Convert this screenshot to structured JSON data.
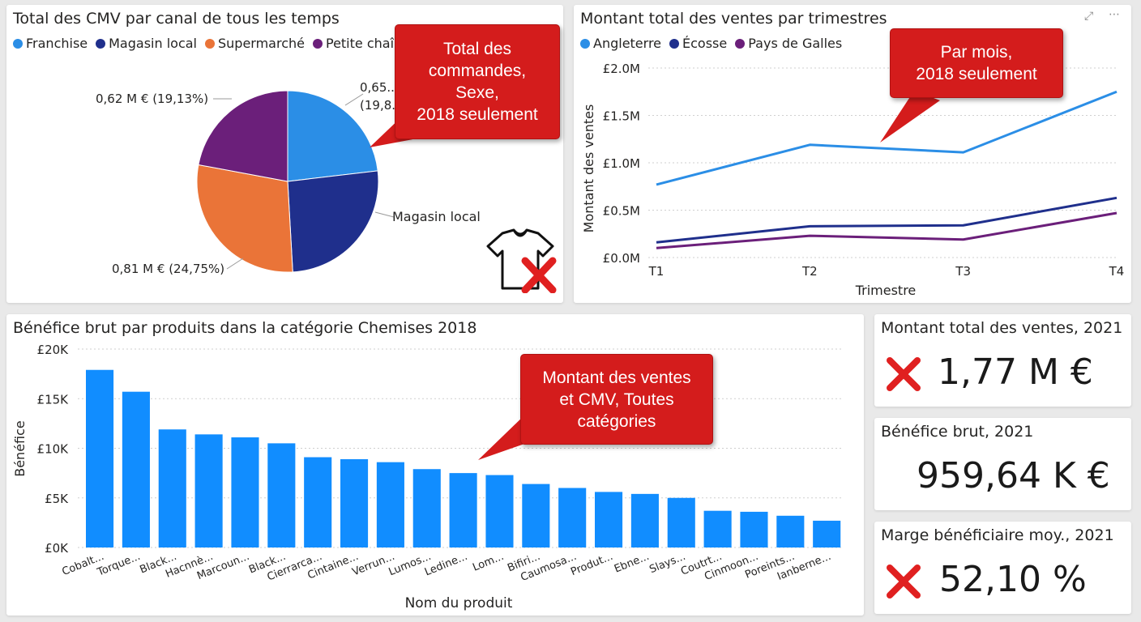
{
  "pie_card": {
    "title": "Total des CMV par canal de tous les temps",
    "legend": [
      {
        "name": "Franchise",
        "color": "#2b8ee6"
      },
      {
        "name": "Magasin local",
        "color": "#1f2f8c"
      },
      {
        "name": "Supermarché",
        "color": "#ea7438"
      },
      {
        "name": "Petite chaîne ...",
        "color": "#6b1f7a"
      }
    ],
    "labels": {
      "left_top": "0,62 M € (19,13%)",
      "right_top_1": "0,65...",
      "right_top_2": "(19,8...",
      "right_mid": "Magasin local",
      "left_bottom": "0,81 M € (24,75%)"
    },
    "callout": [
      "Total des",
      "commandes,",
      "Sexe,",
      "2018 seulement"
    ],
    "icon": "tshirt-icon"
  },
  "line_card": {
    "title": "Montant total des ventes par trimestres",
    "callout": [
      "Par mois,",
      "2018 seulement"
    ]
  },
  "bar_card": {
    "title": "Bénéfice brut par produits dans la catégorie Chemises 2018",
    "callout": [
      "Montant des ventes",
      "et CMV, Toutes",
      "catégories"
    ]
  },
  "kpis": [
    {
      "title": "Montant total des ventes, 2021",
      "value": "1,77 M €",
      "flag": "red-x-icon"
    },
    {
      "title": "Bénéfice brut, 2021",
      "value": "959,64 K €",
      "flag": ""
    },
    {
      "title": "Marge bénéficiaire moy., 2021",
      "value": "52,10 %",
      "flag": "red-x-icon"
    }
  ],
  "chart_data": [
    {
      "type": "pie",
      "title": "Total des CMV par canal de tous les temps",
      "categories": [
        "Franchise",
        "Magasin local",
        "Supermarché",
        "Petite chaîne ..."
      ],
      "values": [
        0.65,
        0.73,
        0.81,
        0.62
      ],
      "colors": [
        "#2b8ee6",
        "#1f2f8c",
        "#ea7438",
        "#6b1f7a"
      ],
      "legend": "top-left"
    },
    {
      "type": "line",
      "title": "Montant total des ventes par trimestres",
      "xlabel": "Trimestre",
      "ylabel": "Montant des ventes",
      "categories": [
        "T1",
        "T2",
        "T3",
        "T4"
      ],
      "yticks": [
        "£0.0M",
        "£0.5M",
        "£1.0M",
        "£1.5M",
        "£2.0M"
      ],
      "ylim": [
        0,
        2.0
      ],
      "series": [
        {
          "name": "Angleterre",
          "color": "#2b8ee6",
          "values": [
            0.77,
            1.19,
            1.11,
            1.75
          ]
        },
        {
          "name": "Écosse",
          "color": "#1f2f8c",
          "values": [
            0.16,
            0.33,
            0.34,
            0.63
          ]
        },
        {
          "name": "Pays de Galles",
          "color": "#6b1f7a",
          "values": [
            0.1,
            0.23,
            0.19,
            0.47
          ]
        }
      ],
      "grid": true,
      "legend": "top-left"
    },
    {
      "type": "bar",
      "title": "Bénéfice brut par produits dans la catégorie Chemises 2018",
      "xlabel": "Nom du produit",
      "ylabel": "Bénéfice",
      "categories": [
        "Cobalt...",
        "Torque...",
        "Black...",
        "Hacnnè...",
        "Marcoun...",
        "Black...",
        "Cierrarca...",
        "Cintaine...",
        "Verrun...",
        "Lumos...",
        "Ledine...",
        "Lom...",
        "Bifiri...",
        "Caumosa...",
        "Produt...",
        "Ebne...",
        "Slays...",
        "Coutrt...",
        "Cinmoon...",
        "Poreints...",
        "Ianberne..."
      ],
      "values": [
        17900,
        15700,
        11900,
        11400,
        11100,
        10500,
        9100,
        8900,
        8600,
        7900,
        7500,
        7300,
        6400,
        6000,
        5600,
        5400,
        5000,
        3700,
        3600,
        3200,
        2700
      ],
      "yticks": [
        "£0K",
        "£5K",
        "£10K",
        "£15K",
        "£20K"
      ],
      "ylim": [
        0,
        20000
      ],
      "color": "#118dff",
      "grid": true
    }
  ]
}
